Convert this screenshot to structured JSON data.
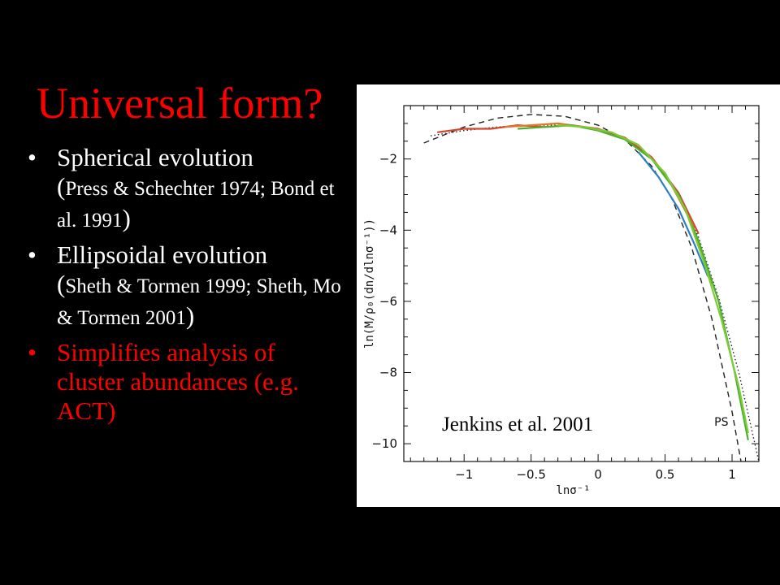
{
  "slide": {
    "title": "Universal form?"
  },
  "bullets": [
    {
      "main": "Spherical evolution",
      "open": "(",
      "sub": "Press & Schechter  1974; Bond et al. 1991",
      "close": ")",
      "color": "#ffffff"
    },
    {
      "main": "Ellipsoidal evolution",
      "open": "(",
      "sub": "Sheth & Tormen 1999; Sheth, Mo & Tormen 2001",
      "close": ")",
      "color": "#ffffff"
    },
    {
      "main": "Simplifies analysis of cluster abundances (e.g. ACT)",
      "color": "#ff0000"
    }
  ],
  "figure": {
    "citation": "Jenkins et al. 2001"
  },
  "chart_data": {
    "type": "line",
    "title": "",
    "xlabel": "lnσ⁻¹",
    "ylabel": "ln(M/ρ₀(dn/dlnσ⁻¹))",
    "xlim": [
      -1.45,
      1.2
    ],
    "ylim": [
      -10.5,
      -0.5
    ],
    "xticks": [
      -1,
      -0.5,
      0,
      0.5,
      1
    ],
    "xtick_labels": [
      "−1",
      "−0.5",
      "0",
      "0.5",
      "1"
    ],
    "yticks": [
      -2,
      -4,
      -6,
      -8,
      -10
    ],
    "ytick_labels": [
      "−2",
      "−4",
      "−6",
      "−8",
      "−10"
    ],
    "annotations": [
      {
        "text": "PS",
        "x": 0.92,
        "y": -9.5
      }
    ],
    "series": [
      {
        "style": "dashed",
        "color": "#222222",
        "label": "PS",
        "x": [
          -1.3,
          -1.0,
          -0.75,
          -0.5,
          -0.25,
          0.0,
          0.2,
          0.4,
          0.55,
          0.7,
          0.85,
          1.0,
          1.1
        ],
        "y": [
          -1.55,
          -1.1,
          -0.85,
          -0.75,
          -0.8,
          -1.05,
          -1.45,
          -2.2,
          -3.1,
          -4.5,
          -6.5,
          -9.1,
          -11.2
        ]
      },
      {
        "style": "dotted",
        "color": "#222222",
        "x": [
          -1.25,
          -1.0,
          -0.75,
          -0.5,
          -0.25,
          0.0,
          0.2,
          0.4,
          0.6,
          0.75,
          0.9,
          1.05,
          1.2
        ],
        "y": [
          -1.35,
          -1.2,
          -1.1,
          -1.05,
          -1.05,
          -1.15,
          -1.4,
          -2.0,
          -3.0,
          -4.2,
          -5.9,
          -8.0,
          -10.5
        ]
      },
      {
        "style": "solid",
        "color": "#d4462c",
        "x": [
          -1.2,
          -1.0,
          -0.8,
          -0.6,
          -0.4,
          -0.2,
          0.0,
          0.2,
          0.4,
          0.6,
          0.75
        ],
        "y": [
          -1.25,
          -1.15,
          -1.15,
          -1.05,
          -1.1,
          -1.05,
          -1.15,
          -1.4,
          -1.95,
          -2.95,
          -4.1
        ]
      },
      {
        "style": "solid",
        "color": "#e0782a",
        "x": [
          -0.7,
          -0.5,
          -0.3,
          -0.1,
          0.1,
          0.3,
          0.5,
          0.7,
          0.85
        ],
        "y": [
          -1.1,
          -1.05,
          -1.0,
          -1.1,
          -1.25,
          -1.6,
          -2.4,
          -3.8,
          -5.5
        ]
      },
      {
        "style": "solid",
        "color": "#2e7fc1",
        "x": [
          0.3,
          0.45,
          0.6,
          0.72,
          0.82
        ],
        "y": [
          -1.8,
          -2.5,
          -3.4,
          -4.4,
          -5.3
        ]
      },
      {
        "style": "solid",
        "color": "#4caf2e",
        "x": [
          -0.6,
          -0.4,
          -0.2,
          0.0,
          0.2,
          0.4,
          0.6,
          0.75,
          0.9,
          1.02,
          1.12
        ],
        "y": [
          -1.15,
          -1.1,
          -1.05,
          -1.2,
          -1.45,
          -2.0,
          -3.0,
          -4.3,
          -6.0,
          -8.0,
          -9.9
        ]
      },
      {
        "style": "solid",
        "color": "#7ccc3a",
        "x": [
          -0.3,
          -0.1,
          0.1,
          0.3,
          0.5,
          0.65,
          0.8,
          0.92,
          1.05,
          1.12
        ],
        "y": [
          -1.05,
          -1.1,
          -1.25,
          -1.6,
          -2.4,
          -3.4,
          -5.0,
          -6.5,
          -8.4,
          -9.7
        ]
      }
    ]
  }
}
